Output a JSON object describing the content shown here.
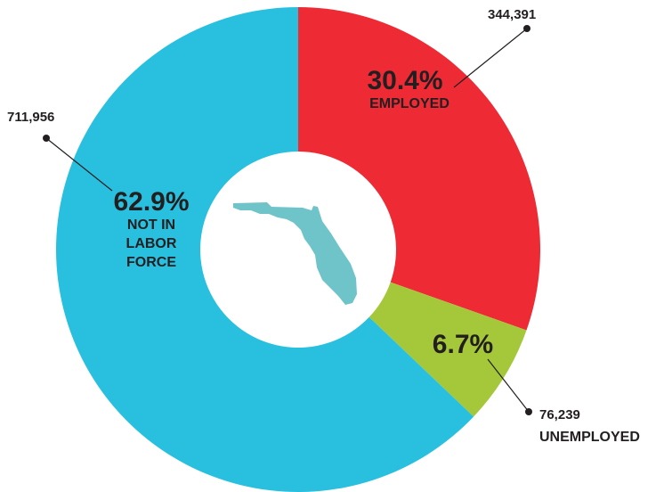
{
  "chart_data": {
    "type": "donut",
    "categories": [
      "EMPLOYED",
      "UNEMPLOYED",
      "NOT IN LABOR FORCE"
    ],
    "values": [
      30.4,
      6.7,
      62.9
    ],
    "value_labels": [
      "30.4%",
      "6.7%",
      "62.9%"
    ],
    "counts": [
      344391,
      76239,
      711956
    ],
    "count_labels": [
      "344,391",
      "76,239",
      "711,956"
    ],
    "colors": [
      "#ee2a35",
      "#a4c83a",
      "#29c0e0"
    ]
  }
}
